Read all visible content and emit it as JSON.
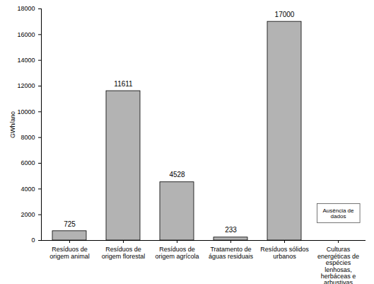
{
  "chart_data": {
    "type": "bar",
    "y_label": "GWh/ano",
    "categories": [
      "Resíduos de origem animal",
      "Resíduos de origem florestal",
      "Resíduos de origem agrícola",
      "Tratamento de águas residuais",
      "Resíduos sólidos urbanos",
      "Culturas energéticas de espécies lenhosas, herbáceas e arbustivas"
    ],
    "values": [
      725,
      11611,
      4528,
      233,
      17000,
      null
    ],
    "color": "#b3b3b3",
    "ylim": [
      0,
      18000
    ],
    "yticks": [
      0,
      2000,
      4000,
      6000,
      8000,
      10000,
      12000,
      14000,
      16000,
      18000
    ],
    "grid": false,
    "data_labels": true,
    "annotations": [
      {
        "text": "Ausência de dados",
        "category": "Culturas energéticas de espécies lenhosas, herbáceas e arbustivas"
      }
    ]
  }
}
